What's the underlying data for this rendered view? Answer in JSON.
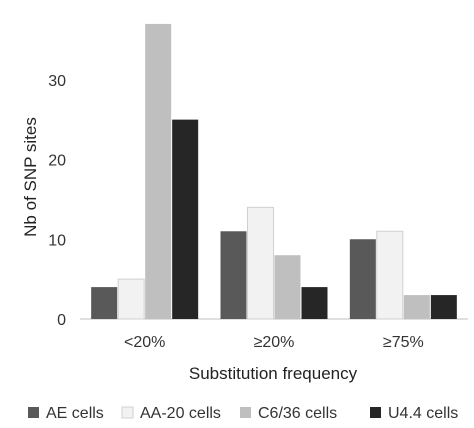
{
  "chart_data": {
    "type": "bar",
    "title": "",
    "xlabel": "Substitution frequency",
    "ylabel": "Nb of SNP sites",
    "categories": [
      "<20%",
      "≥20%",
      "≥75%"
    ],
    "ylim": [
      0,
      40
    ],
    "yticks": [
      0,
      10,
      20,
      30
    ],
    "grid": false,
    "legend_position": "bottom",
    "series": [
      {
        "name": "AE cells",
        "color": "#595959",
        "values": [
          4,
          11,
          10
        ]
      },
      {
        "name": "AA-20 cells",
        "color": "#f2f2f2",
        "values": [
          5,
          14,
          11
        ]
      },
      {
        "name": "C6/36 cells",
        "color": "#bfbfbf",
        "values": [
          37,
          8,
          3
        ]
      },
      {
        "name": "U4.4 cells",
        "color": "#262626",
        "values": [
          25,
          4,
          3
        ]
      }
    ]
  }
}
